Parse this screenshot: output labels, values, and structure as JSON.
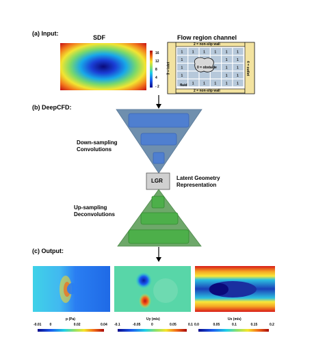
{
  "sections": {
    "input": "(a) Input:",
    "deepcfd": "(b) DeepCFD:",
    "output": "(c) Output:"
  },
  "sdf": {
    "title": "SDF",
    "colorbar_ticks": [
      "16",
      "12",
      "8",
      "4",
      "- 2"
    ]
  },
  "channel": {
    "title": "Flow region channel",
    "top_wall": "2 = non-slip wall",
    "bottom_wall": "2 = non-slip wall",
    "inlet": "3 = inlet",
    "outlet": "4 = outlet",
    "obstacle": "0 = obstacle",
    "fluid": "fluid",
    "cell_value": "1"
  },
  "network": {
    "down_label": "Down-sampling Convolutions",
    "up_label": "Up-sampling Deconvolutions",
    "lgr_box": "LGR",
    "lgr_label": "Latent Geometry Representation"
  },
  "outputs": [
    {
      "label": "p (Pa)",
      "ticks": [
        "-0.01",
        "0",
        "0.02",
        "0.04"
      ]
    },
    {
      "label": "Uy (m/s)",
      "ticks": [
        "-0.1",
        "-0.05",
        "0",
        "0.05",
        "0.1"
      ]
    },
    {
      "label": "Ux (m/s)",
      "ticks": [
        "0.0",
        "0.05",
        "0.1",
        "0.15",
        "0.2"
      ]
    }
  ],
  "colors": {
    "funnel": "#6f8fae",
    "funnel_box": "#4f7fd0",
    "green_tri": "#6ea86a",
    "green_box": "#4daf4a",
    "wall": "#f3e3a0",
    "cell": "#b6c8da"
  }
}
